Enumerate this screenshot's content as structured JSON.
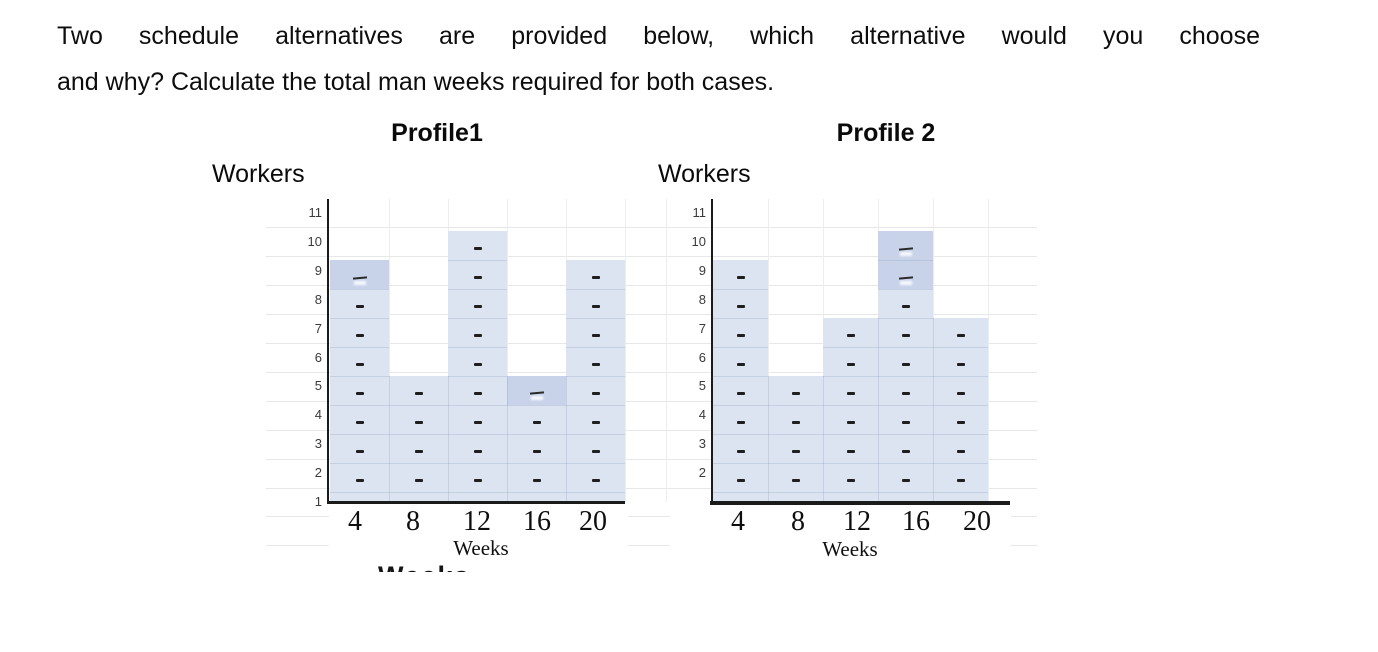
{
  "header": {
    "line1": "Two schedule alternatives are provided below, which alternative would you choose",
    "line2": "and why? Calculate the total man weeks required for both cases."
  },
  "cropped_text": {
    "text": "Weeks"
  },
  "chart_data": [
    {
      "type": "bar",
      "title": "Profile1",
      "ylabel": "Workers",
      "xlabel": "Weeks",
      "x_categories": [
        "4",
        "8",
        "12",
        "16",
        "20"
      ],
      "values": [
        9,
        5,
        10,
        5,
        9
      ],
      "bar_tops": [
        9.5,
        5.5,
        10.5,
        5.5,
        9.5
      ],
      "bar_base": 1,
      "ylim": [
        1,
        11
      ],
      "y_ticks": [
        "11",
        "10",
        "9",
        "8",
        "7",
        "6",
        "5",
        "4",
        "3",
        "2",
        "1"
      ],
      "highlight_cells": [
        {
          "bar": 0,
          "level": 9
        },
        {
          "bar": 3,
          "level": 5
        }
      ],
      "grid": true,
      "legend": "none"
    },
    {
      "type": "bar",
      "title": "Profile 2",
      "ylabel": "Workers",
      "xlabel": "Weeks",
      "x_categories": [
        "4",
        "8",
        "12",
        "16",
        "20"
      ],
      "values": [
        9,
        5,
        7,
        10,
        7
      ],
      "bar_tops": [
        9.5,
        5.5,
        7.5,
        10.5,
        7.5
      ],
      "bar_base": 1,
      "ylim": [
        1,
        11
      ],
      "y_ticks": [
        "11",
        "10",
        "9",
        "8",
        "7",
        "6",
        "5",
        "4",
        "3",
        "2"
      ],
      "highlight_cells": [
        {
          "bar": 3,
          "level": 10
        },
        {
          "bar": 3,
          "level": 9
        }
      ],
      "grid": true,
      "legend": "none"
    }
  ],
  "colors": {
    "bar_fill": "#dce4f2",
    "bar_fill_highlight": "#c8d3ea",
    "axis": "#1b1b1b",
    "faint_grid": "#e7e7e7",
    "faint_grid_vertical": "#ededed",
    "cell_separator": "rgba(125,145,180,0.25)",
    "dash": "#1f1f1f",
    "tick_text": "#3a3a3a",
    "x_tick_text": "#0e0e0e",
    "text": "#0d0d0d"
  }
}
